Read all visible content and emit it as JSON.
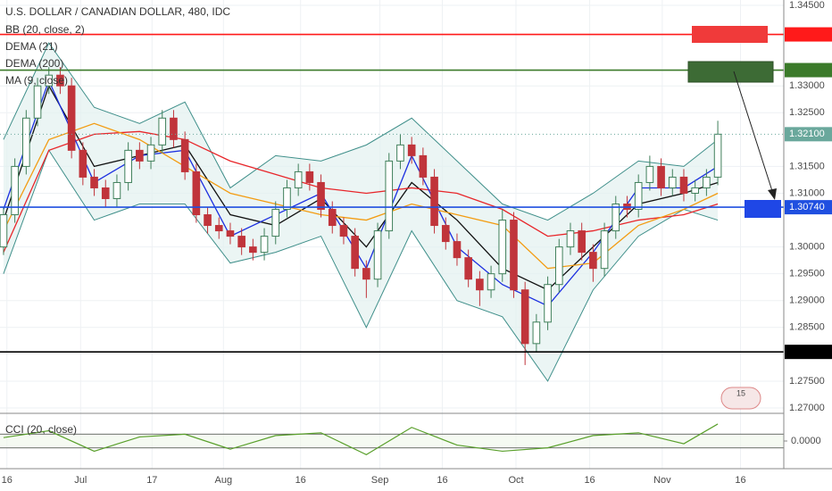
{
  "title": "U.S. DOLLAR / CANADIAN DOLLAR, 480, IDC",
  "badge": "15",
  "chart_data": [
    {
      "type": "candlestick",
      "xlim": [
        -0.31,
        68.82
      ],
      "ylim": [
        1.26917,
        1.346
      ],
      "xticks": [
        {
          "value": 0.3,
          "label": "16"
        },
        {
          "value": 6.8,
          "label": "Jul"
        },
        {
          "value": 13.1,
          "label": "17"
        },
        {
          "value": 19.4,
          "label": "Aug"
        },
        {
          "value": 26.2,
          "label": "16"
        },
        {
          "value": 33.2,
          "label": "Sep"
        },
        {
          "value": 38.7,
          "label": "16"
        },
        {
          "value": 45.2,
          "label": "Oct"
        },
        {
          "value": 51.7,
          "label": "16"
        },
        {
          "value": 58.1,
          "label": "Nov"
        },
        {
          "value": 65.0,
          "label": "16"
        }
      ],
      "yticks": [
        {
          "value": 1.345,
          "label": "1.34500"
        },
        {
          "value": 1.33,
          "label": "1.33000"
        },
        {
          "value": 1.325,
          "label": "1.32500"
        },
        {
          "value": 1.315,
          "label": "1.31500"
        },
        {
          "value": 1.31,
          "label": "1.31000"
        },
        {
          "value": 1.3,
          "label": "1.30000"
        },
        {
          "value": 1.295,
          "label": "1.29500"
        },
        {
          "value": 1.29,
          "label": "1.29000"
        },
        {
          "value": 1.285,
          "label": "1.28500"
        },
        {
          "value": 1.275,
          "label": "1.27500"
        },
        {
          "value": 1.27,
          "label": "1.27000"
        }
      ],
      "grid": true,
      "up_color": "#3f7f5a",
      "down_color": "#c0343b",
      "open": [
        1.3,
        1.306,
        1.315,
        1.324,
        1.33,
        1.332,
        1.33,
        1.318,
        1.313,
        1.311,
        1.309,
        1.312,
        1.318,
        1.316,
        1.319,
        1.324,
        1.32,
        1.314,
        1.306,
        1.304,
        1.303,
        1.302,
        1.3,
        1.299,
        1.302,
        1.307,
        1.311,
        1.314,
        1.312,
        1.307,
        1.304,
        1.302,
        1.296,
        1.294,
        1.303,
        1.316,
        1.319,
        1.317,
        1.313,
        1.304,
        1.301,
        1.298,
        1.294,
        1.292,
        1.295,
        1.305,
        1.292,
        1.282,
        1.286,
        1.293,
        1.3,
        1.303,
        1.299,
        1.296,
        1.303,
        1.308,
        1.307,
        1.312,
        1.315,
        1.311,
        1.313,
        1.31,
        1.311,
        1.313
      ],
      "high": [
        1.3075,
        1.3165,
        1.3255,
        1.3315,
        1.3335,
        1.3335,
        1.3315,
        1.3195,
        1.3145,
        1.3125,
        1.3135,
        1.3195,
        1.3195,
        1.3205,
        1.3255,
        1.3255,
        1.3215,
        1.3155,
        1.3075,
        1.3055,
        1.3045,
        1.3035,
        1.3015,
        1.3035,
        1.3085,
        1.3125,
        1.3155,
        1.3155,
        1.3135,
        1.3085,
        1.3055,
        1.3035,
        1.2975,
        1.3045,
        1.3175,
        1.321,
        1.3205,
        1.3185,
        1.3145,
        1.3055,
        1.3025,
        1.2995,
        1.2955,
        1.2965,
        1.307,
        1.3065,
        1.2935,
        1.2875,
        1.2945,
        1.3015,
        1.3045,
        1.3045,
        1.3005,
        1.3045,
        1.3095,
        1.3095,
        1.3135,
        1.317,
        1.3165,
        1.3145,
        1.3145,
        1.3125,
        1.3145,
        1.3235
      ],
      "low": [
        1.2985,
        1.3045,
        1.3135,
        1.3225,
        1.3285,
        1.3285,
        1.3165,
        1.3115,
        1.3095,
        1.3075,
        1.3075,
        1.3105,
        1.3145,
        1.3145,
        1.3175,
        1.3185,
        1.3125,
        1.3045,
        1.3025,
        1.3015,
        1.3005,
        1.2985,
        1.2975,
        1.2975,
        1.3005,
        1.3055,
        1.3095,
        1.3105,
        1.3055,
        1.3025,
        1.3005,
        1.2945,
        1.2905,
        1.2925,
        1.3015,
        1.3145,
        1.3155,
        1.3115,
        1.3025,
        1.2995,
        1.2965,
        1.2925,
        1.289,
        1.2905,
        1.2935,
        1.2905,
        1.278,
        1.2805,
        1.2845,
        1.2915,
        1.2985,
        1.2975,
        1.2935,
        1.2945,
        1.3015,
        1.3055,
        1.3055,
        1.3105,
        1.3095,
        1.3095,
        1.3085,
        1.3085,
        1.3095,
        1.3115
      ],
      "close": [
        1.306,
        1.315,
        1.324,
        1.33,
        1.332,
        1.33,
        1.318,
        1.313,
        1.311,
        1.309,
        1.312,
        1.318,
        1.316,
        1.319,
        1.324,
        1.32,
        1.314,
        1.306,
        1.304,
        1.303,
        1.302,
        1.3,
        1.299,
        1.302,
        1.307,
        1.311,
        1.314,
        1.312,
        1.307,
        1.304,
        1.302,
        1.296,
        1.294,
        1.303,
        1.316,
        1.319,
        1.317,
        1.313,
        1.304,
        1.301,
        1.298,
        1.294,
        1.292,
        1.295,
        1.305,
        1.292,
        1.282,
        1.286,
        1.293,
        1.3,
        1.303,
        1.299,
        1.296,
        1.303,
        1.308,
        1.307,
        1.312,
        1.315,
        1.311,
        1.313,
        1.31,
        1.311,
        1.313,
        1.321
      ],
      "levels": [
        {
          "value": 1.33959,
          "color": "#ff1a1a"
        },
        {
          "value": 1.33294,
          "color": "#3b7a2a"
        },
        {
          "value": 1.321,
          "label": "1.32100",
          "color": "#6aa89c"
        },
        {
          "value": 1.3074,
          "label": "1.30740",
          "color": "#1f4fe0"
        },
        {
          "value": 1.28045,
          "color": "#000000"
        }
      ],
      "indicators": {
        "x": [
          0,
          4,
          8,
          12,
          16,
          20,
          24,
          28,
          32,
          36,
          40,
          44,
          48,
          52,
          56,
          60,
          63
        ],
        "series": [
          {
            "name": "BB (20, close, 2)",
            "color": "#3f8f8a",
            "upper": [
              1.32,
              1.338,
              1.326,
              1.323,
              1.327,
              1.311,
              1.317,
              1.316,
              1.319,
              1.324,
              1.316,
              1.308,
              1.305,
              1.31,
              1.316,
              1.315,
              1.32
            ],
            "lower": [
              1.295,
              1.318,
              1.305,
              1.308,
              1.308,
              1.297,
              1.299,
              1.302,
              1.285,
              1.303,
              1.29,
              1.287,
              1.275,
              1.292,
              1.302,
              1.307,
              1.305
            ]
          },
          {
            "name": "DEMA (21)",
            "color": "#111111",
            "values": [
              1.305,
              1.33,
              1.315,
              1.317,
              1.319,
              1.306,
              1.304,
              1.309,
              1.3,
              1.312,
              1.305,
              1.296,
              1.292,
              1.3,
              1.308,
              1.31,
              1.312
            ]
          },
          {
            "name": "DEMA (200)",
            "color": "#e8262a",
            "values": [
              1.299,
              1.318,
              1.321,
              1.3215,
              1.32,
              1.316,
              1.3135,
              1.311,
              1.31,
              1.311,
              1.31,
              1.307,
              1.302,
              1.303,
              1.305,
              1.306,
              1.308
            ]
          },
          {
            "name": "MA (9, close)",
            "color": "#1c2fe0",
            "values": [
              1.307,
              1.331,
              1.312,
              1.317,
              1.318,
              1.302,
              1.306,
              1.31,
              1.296,
              1.317,
              1.3,
              1.293,
              1.289,
              1.299,
              1.311,
              1.311,
              1.315
            ]
          },
          {
            "color": "#f39c12",
            "values": [
              1.303,
              1.32,
              1.323,
              1.32,
              1.315,
              1.31,
              1.308,
              1.306,
              1.305,
              1.308,
              1.306,
              1.304,
              1.296,
              1.297,
              1.304,
              1.307,
              1.31
            ]
          }
        ]
      }
    },
    {
      "type": "line",
      "title": "CCI (20, close)",
      "color": "#5aa02c",
      "x": [
        0,
        4,
        8,
        12,
        16,
        20,
        24,
        28,
        32,
        36,
        40,
        44,
        48,
        52,
        56,
        60,
        63
      ],
      "values": [
        50,
        150,
        -150,
        60,
        100,
        -120,
        80,
        120,
        -200,
        200,
        -60,
        -150,
        -100,
        80,
        120,
        -40,
        250
      ],
      "ylim": [
        -380,
        380
      ],
      "yticks": [
        {
          "value": 0,
          "label": "0.0000"
        }
      ],
      "levels": [
        100,
        -100
      ]
    }
  ]
}
